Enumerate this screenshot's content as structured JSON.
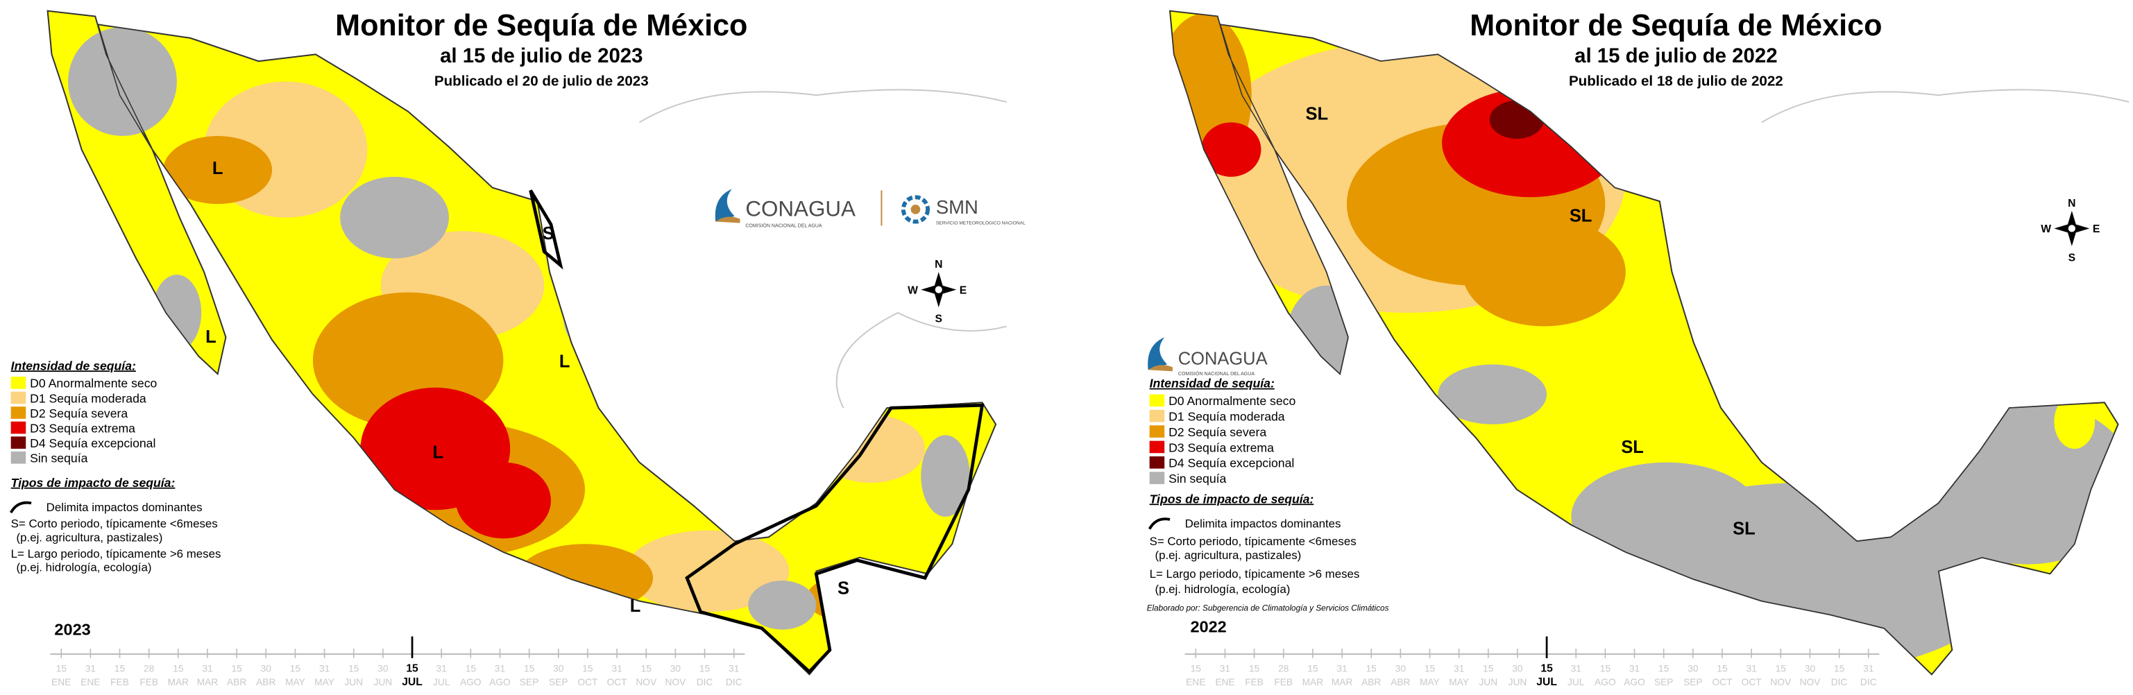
{
  "panels": [
    {
      "title": "Monitor de Sequía de México",
      "date": "al 15 de julio de 2023",
      "published": "Publicado el 20 de julio de 2023",
      "year": "2023",
      "logo": {
        "name": "CONAGUA",
        "subtitle": "COMISIÓN NACIONAL DEL AGUA"
      },
      "logo2": {
        "name": "SMN",
        "subtitle": "SERVICIO METEOROLÓGICO NACIONAL"
      },
      "map_labels": [
        "L",
        "L",
        "L",
        "L",
        "L",
        "S",
        "S"
      ]
    },
    {
      "title": "Monitor de Sequía de México",
      "date": "al 15 de julio de 2022",
      "published": "Publicado el 18 de julio de 2022",
      "year": "2022",
      "logo": {
        "name": "CONAGUA",
        "subtitle": "COMISIÓN NACIONAL DEL AGUA"
      },
      "map_labels": [
        "SL",
        "SL",
        "SL",
        "SL"
      ],
      "credit": "Elaborado por: Subgerencia de Climatología y Servicios Climáticos"
    }
  ],
  "legend": {
    "heading": "Intensidad de sequía:",
    "items": [
      {
        "label": "D0 Anormalmente seco",
        "color": "#ffff00"
      },
      {
        "label": "D1 Sequía moderada",
        "color": "#fcd37f"
      },
      {
        "label": "D2 Sequía severa",
        "color": "#e69800"
      },
      {
        "label": "D3 Sequía extrema",
        "color": "#e60000"
      },
      {
        "label": "D4 Sequía excepcional",
        "color": "#730000"
      },
      {
        "label": "Sin sequía",
        "color": "#b2b2b2"
      }
    ],
    "impact_heading": "Tipos de impacto de sequía:",
    "impact_lines": [
      "Delimita impactos dominantes",
      "S= Corto periodo, típicamente <6meses",
      "(p.ej. agricultura, pastizales)",
      "L= Largo periodo, típicamente >6 meses",
      "(p.ej. hidrología, ecología)"
    ]
  },
  "compass": [
    "N",
    "E",
    "S",
    "W"
  ],
  "timeline": {
    "days": [
      "15",
      "31",
      "15",
      "28",
      "15",
      "31",
      "15",
      "30",
      "15",
      "31",
      "15",
      "30",
      "15",
      "31",
      "15",
      "31",
      "15",
      "30",
      "15",
      "31",
      "15",
      "30",
      "15",
      "31"
    ],
    "months": [
      "ENE",
      "ENE",
      "FEB",
      "FEB",
      "MAR",
      "MAR",
      "ABR",
      "ABR",
      "MAY",
      "MAY",
      "JUN",
      "JUN",
      "JUL",
      "JUL",
      "AGO",
      "AGO",
      "SEP",
      "SEP",
      "OCT",
      "OCT",
      "NOV",
      "NOV",
      "DIC",
      "DIC"
    ]
  }
}
